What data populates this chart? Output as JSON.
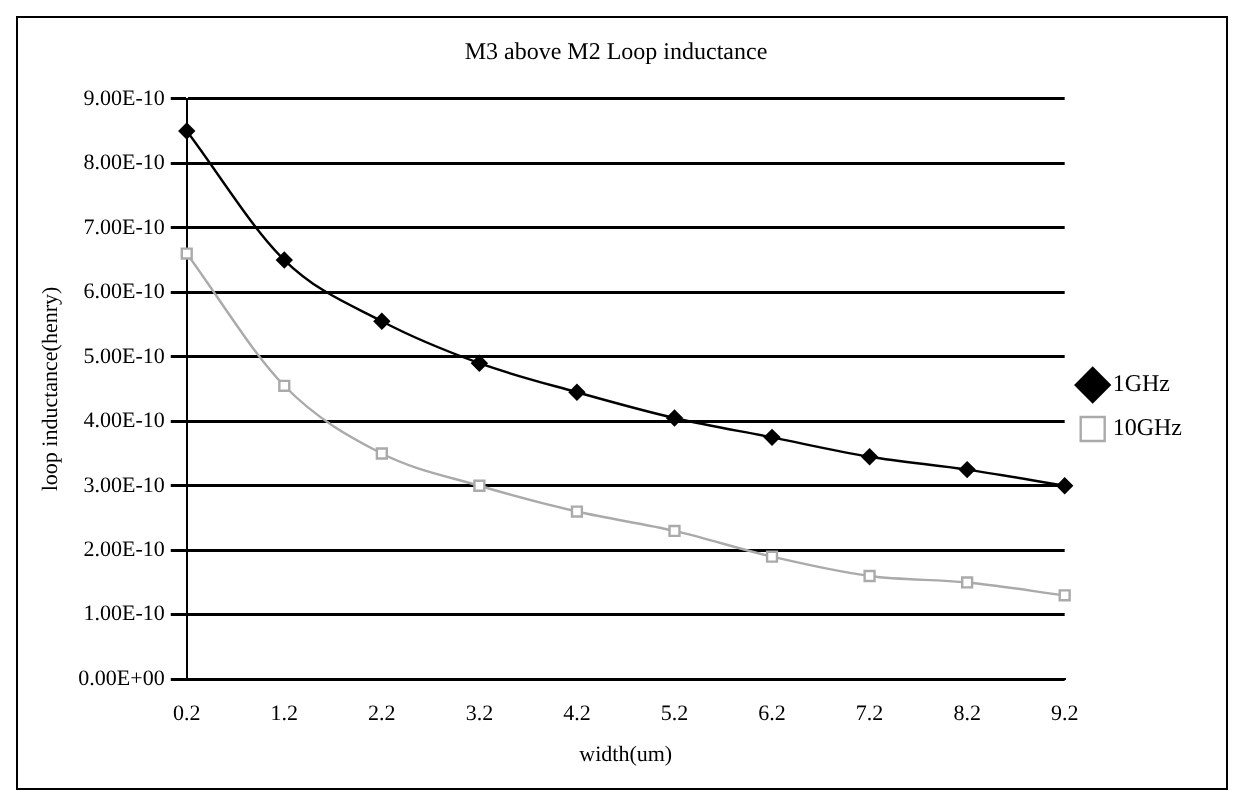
{
  "chart_data": {
    "type": "line",
    "title": "M3 above M2 Loop inductance",
    "xlabel": "width(um)",
    "ylabel": "loop inductance(henry)",
    "categories": [
      "0.2",
      "1.2",
      "2.2",
      "3.2",
      "4.2",
      "5.2",
      "6.2",
      "7.2",
      "8.2",
      "9.2"
    ],
    "series": [
      {
        "name": "1GHz",
        "color": "#000000",
        "marker": "diamond",
        "values": [
          8.5e-10,
          6.5e-10,
          5.55e-10,
          4.9e-10,
          4.45e-10,
          4.05e-10,
          3.75e-10,
          3.45e-10,
          3.25e-10,
          3e-10
        ]
      },
      {
        "name": "10GHz",
        "color": "#aaaaaa",
        "marker": "square",
        "values": [
          6.6e-10,
          4.55e-10,
          3.5e-10,
          3e-10,
          2.6e-10,
          2.3e-10,
          1.9e-10,
          1.6e-10,
          1.5e-10,
          1.3e-10
        ]
      }
    ],
    "ylim": [
      0,
      9e-10
    ],
    "yticks": [
      {
        "value": 0,
        "label": "0.00E+00"
      },
      {
        "value": 1e-10,
        "label": "1.00E-10"
      },
      {
        "value": 2e-10,
        "label": "2.00E-10"
      },
      {
        "value": 3e-10,
        "label": "3.00E-10"
      },
      {
        "value": 4e-10,
        "label": "4.00E-10"
      },
      {
        "value": 5e-10,
        "label": "5.00E-10"
      },
      {
        "value": 6e-10,
        "label": "6.00E-10"
      },
      {
        "value": 7e-10,
        "label": "7.00E-10"
      },
      {
        "value": 8e-10,
        "label": "8.00E-10"
      },
      {
        "value": 9e-10,
        "label": "9.00E-10"
      }
    ],
    "grid": "y",
    "legend": "right",
    "line_style": "solid"
  }
}
